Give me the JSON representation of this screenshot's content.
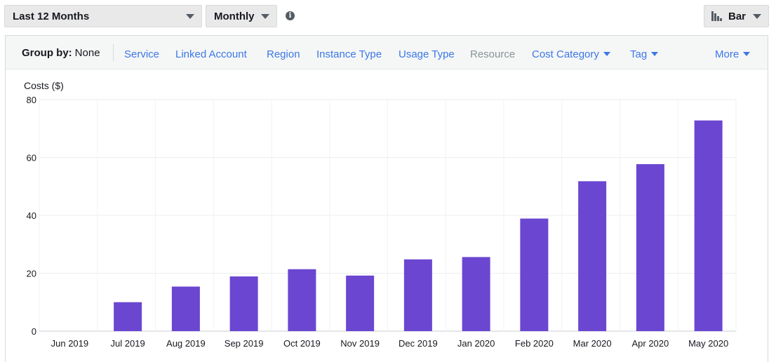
{
  "toolbar": {
    "range_label": "Last 12 Months",
    "granularity_label": "Monthly",
    "chart_type_label": "Bar",
    "info_icon": "info-icon",
    "bar_icon": "bar-chart-icon"
  },
  "group_by": {
    "label": "Group by:",
    "value": "None",
    "options": [
      {
        "label": "Service",
        "state": "link"
      },
      {
        "label": "Linked Account",
        "state": "link"
      },
      {
        "label": "Region",
        "state": "link"
      },
      {
        "label": "Instance Type",
        "state": "link"
      },
      {
        "label": "Usage Type",
        "state": "link"
      },
      {
        "label": "Resource",
        "state": "disabled"
      },
      {
        "label": "Cost Category",
        "state": "dropdown"
      },
      {
        "label": "Tag",
        "state": "dropdown"
      },
      {
        "label": "More",
        "state": "dropdown"
      }
    ]
  },
  "chart_data": {
    "type": "bar",
    "ylabel": "Costs ($)",
    "xlabel": "",
    "ylim": [
      0,
      80
    ],
    "yticks": [
      0,
      20,
      40,
      60,
      80
    ],
    "grid": true,
    "bar_color": "#6b46d1",
    "categories": [
      "Jun 2019",
      "Jul 2019",
      "Aug 2019",
      "Sep 2019",
      "Oct 2019",
      "Nov 2019",
      "Dec 2019",
      "Jan 2020",
      "Feb 2020",
      "Mar 2020",
      "Apr 2020",
      "May 2020"
    ],
    "values": [
      0,
      10,
      15.4,
      18.9,
      21.4,
      19.2,
      24.8,
      25.6,
      38.9,
      51.8,
      57.7,
      72.8
    ]
  }
}
